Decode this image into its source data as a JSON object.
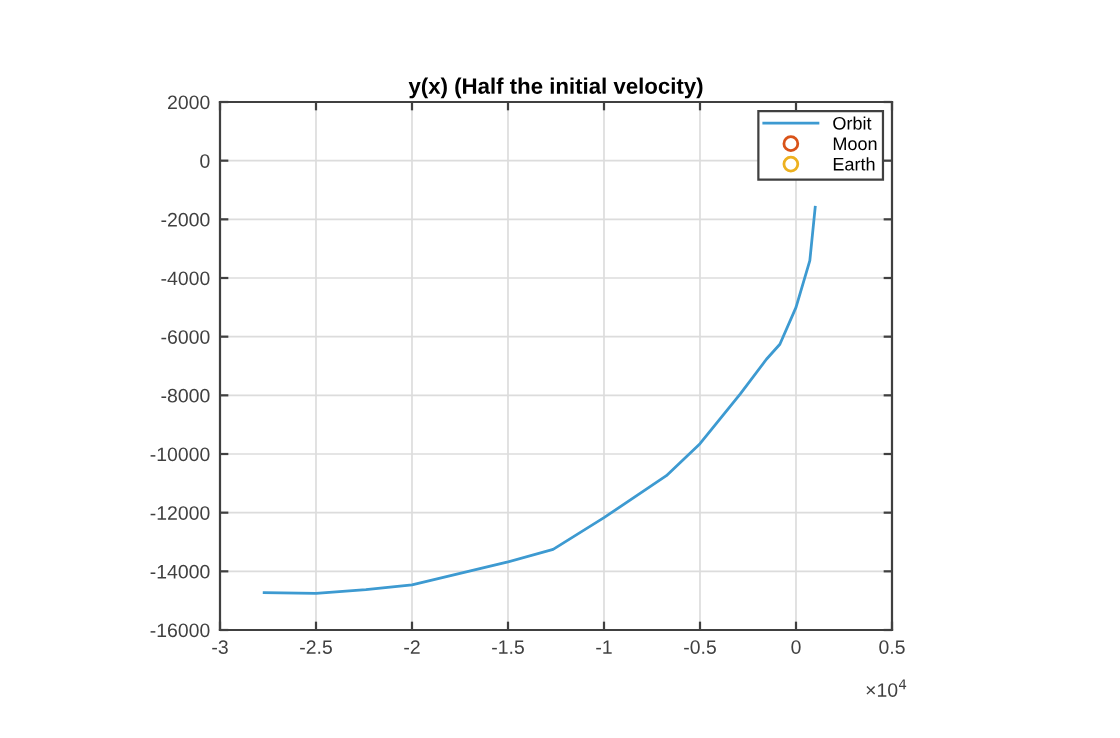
{
  "chart_data": {
    "type": "line",
    "title": "y(x) (Half the initial velocity)",
    "xlim": [
      -3,
      0.5
    ],
    "ylim": [
      -16000,
      2000
    ],
    "xticks": [
      -3,
      -2.5,
      -2,
      -1.5,
      -1,
      -0.5,
      0,
      0.5
    ],
    "yticks": [
      -16000,
      -14000,
      -12000,
      -10000,
      -8000,
      -6000,
      -4000,
      -2000,
      0,
      2000
    ],
    "annotations": [
      "×10$^{4}$"
    ],
    "grid": true,
    "legend": "top right",
    "series": [
      {
        "name": "Orbit",
        "color": "#3d9ad1",
        "x": [
          -2.77,
          -2.5,
          -2.24,
          -2.0,
          -1.5,
          -1.265,
          -1.0,
          -0.675,
          -0.5,
          -0.29,
          -0.154,
          -0.084,
          0,
          0.072,
          0.1
        ],
        "values": [
          -14730,
          -14750,
          -14620,
          -14460,
          -13680,
          -13250,
          -12170,
          -10740,
          -9650,
          -7950,
          -6770,
          -6260,
          -5000,
          -3410,
          -1590
        ]
      },
      {
        "name": "Moon",
        "type": "scatter",
        "marker": "circle",
        "color": "#d95319"
      },
      {
        "name": "Earth",
        "type": "scatter",
        "marker": "circle",
        "color": "#edb120"
      }
    ]
  }
}
